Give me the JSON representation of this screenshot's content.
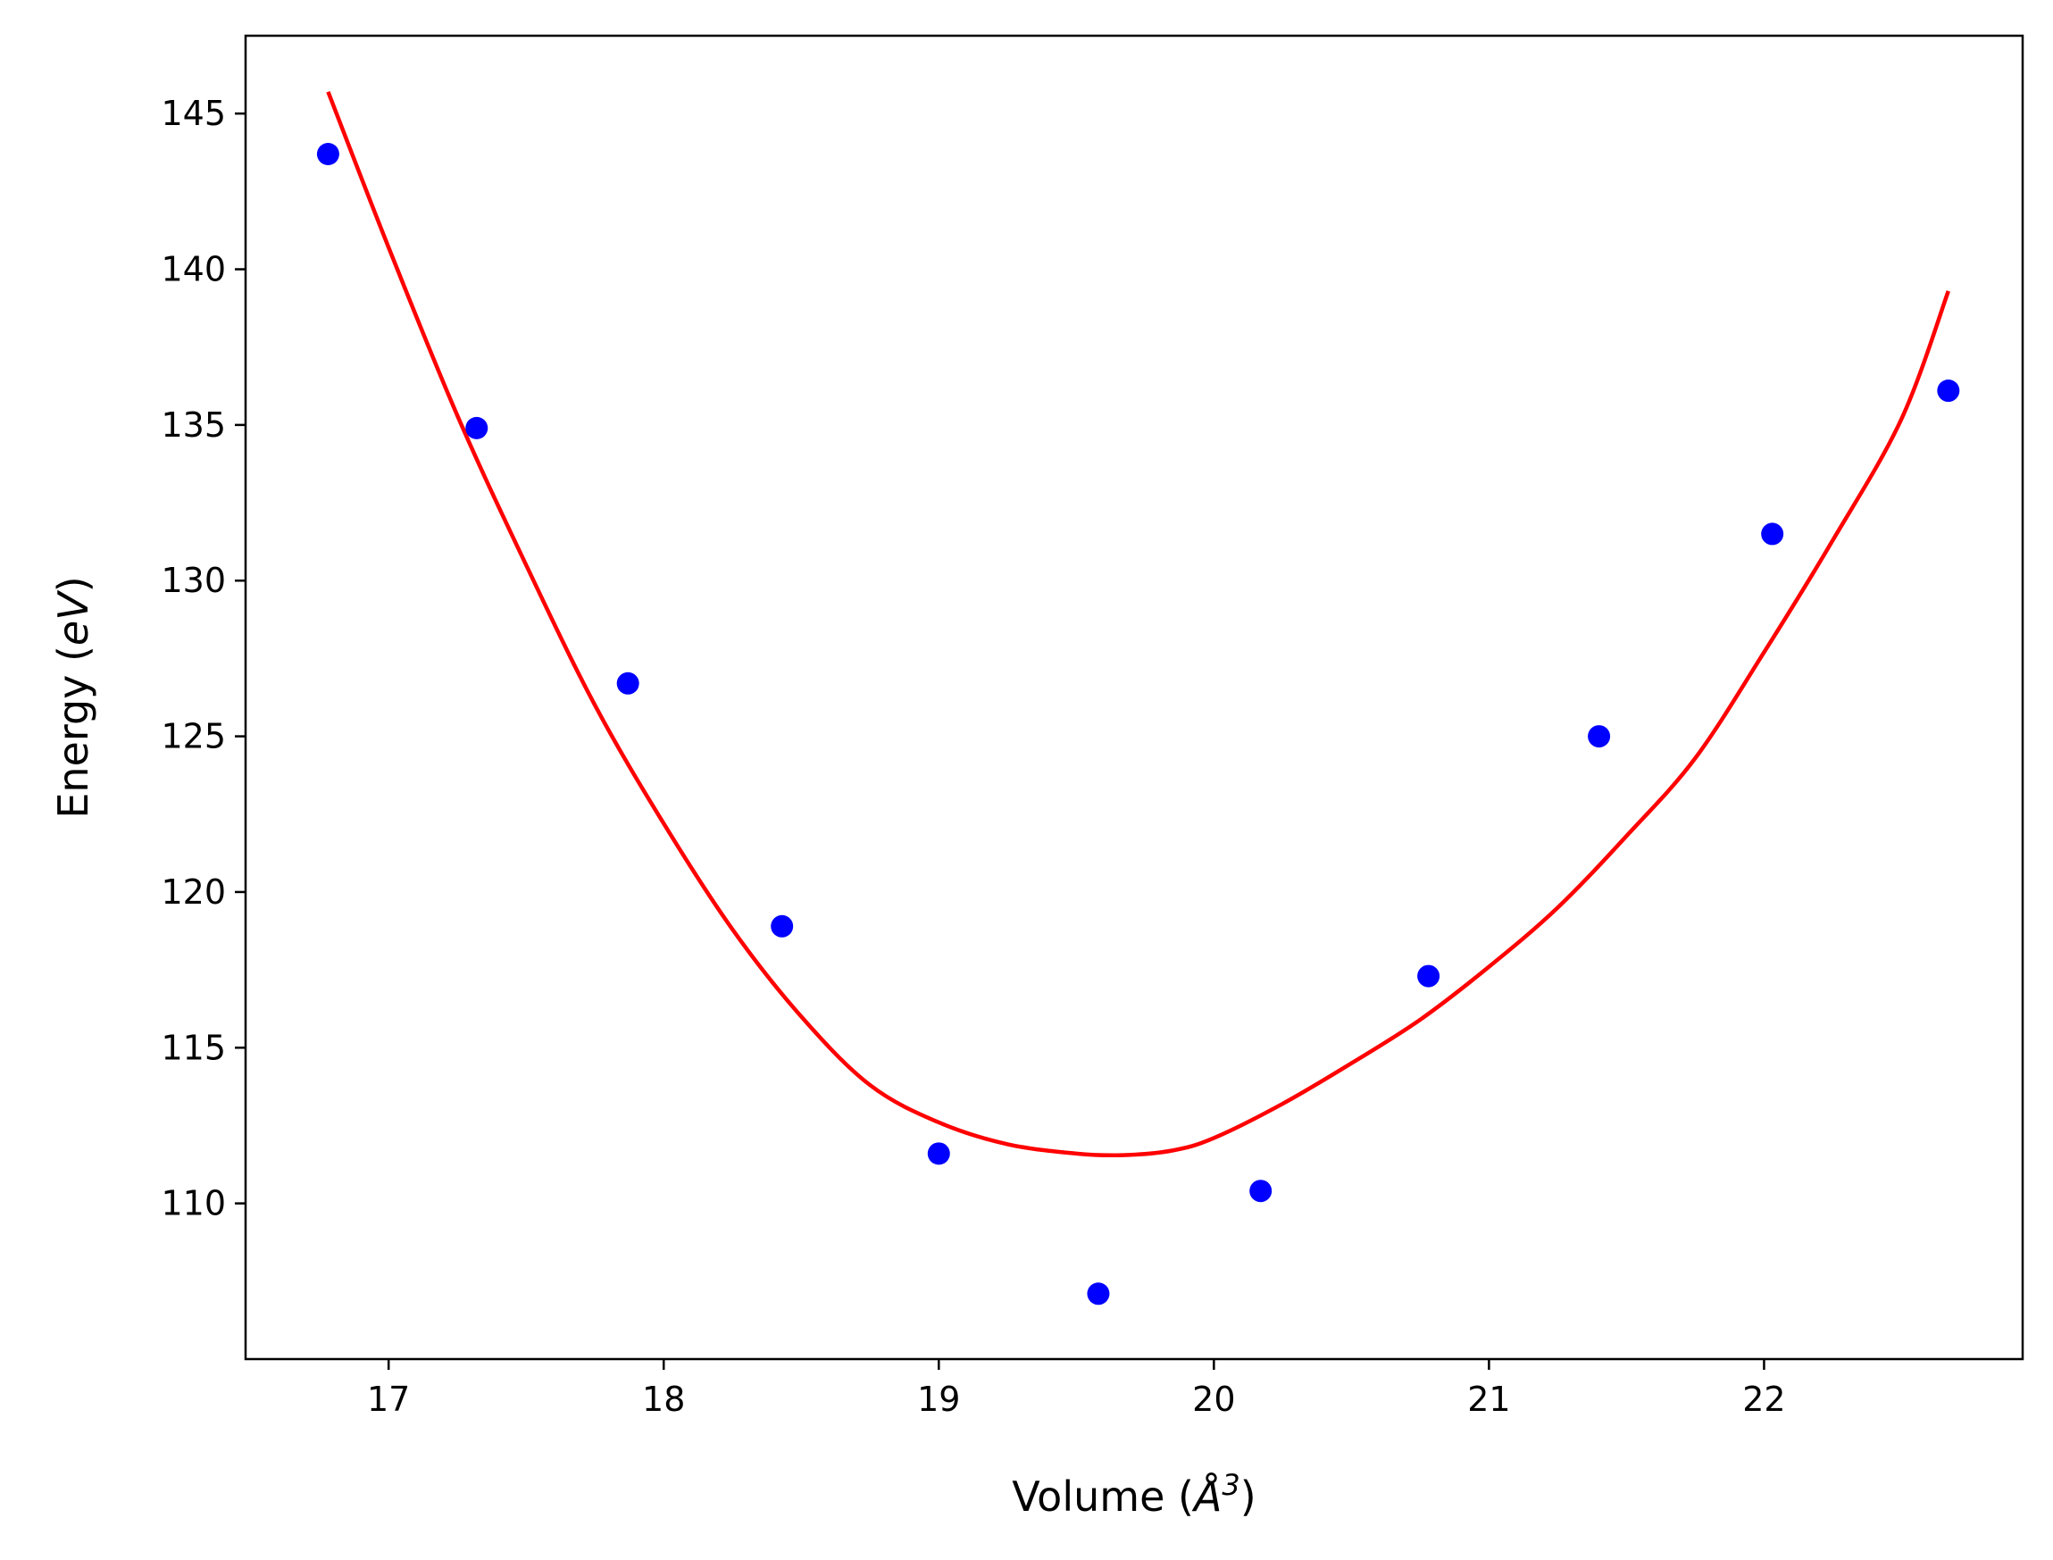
{
  "chart_data": {
    "type": "scatter",
    "title": "",
    "xlabel": "Volume (Å³)",
    "xlabel_parts": {
      "prefix": "Volume (",
      "symbol": "Å",
      "exponent": "3",
      "suffix": ")"
    },
    "ylabel": "Energy (eV)",
    "ylabel_parts": {
      "prefix": "Energy (",
      "unit": "eV",
      "suffix": ")"
    },
    "xlim": [
      16.48,
      22.94
    ],
    "ylim": [
      105.0,
      147.5
    ],
    "xticks": [
      17,
      18,
      19,
      20,
      21,
      22
    ],
    "yticks": [
      110,
      115,
      120,
      125,
      130,
      135,
      140,
      145
    ],
    "grid": false,
    "legend": "none",
    "series": [
      {
        "kind": "scatter",
        "color": "#0000ff",
        "x": [
          16.78,
          17.32,
          17.87,
          18.43,
          19.0,
          19.58,
          20.17,
          20.78,
          21.4,
          22.03,
          22.67
        ],
        "y": [
          143.7,
          134.9,
          126.7,
          118.9,
          111.6,
          107.1,
          110.4,
          117.3,
          125.0,
          131.5,
          136.1
        ]
      },
      {
        "kind": "line",
        "color": "#ff0000",
        "x": [
          16.78,
          17.0,
          17.25,
          17.5,
          17.75,
          18.0,
          18.25,
          18.5,
          18.75,
          19.0,
          19.25,
          19.5,
          19.67,
          19.85,
          20.0,
          20.25,
          20.5,
          20.75,
          21.0,
          21.25,
          21.5,
          21.75,
          22.0,
          22.25,
          22.5,
          22.67
        ],
        "y": [
          145.7,
          140.7,
          135.3,
          130.5,
          126.0,
          122.2,
          118.8,
          116.0,
          113.8,
          112.6,
          111.9,
          111.6,
          111.55,
          111.7,
          112.1,
          113.2,
          114.5,
          115.9,
          117.6,
          119.5,
          121.8,
          124.3,
          127.7,
          131.3,
          135.2,
          139.3
        ]
      }
    ]
  }
}
